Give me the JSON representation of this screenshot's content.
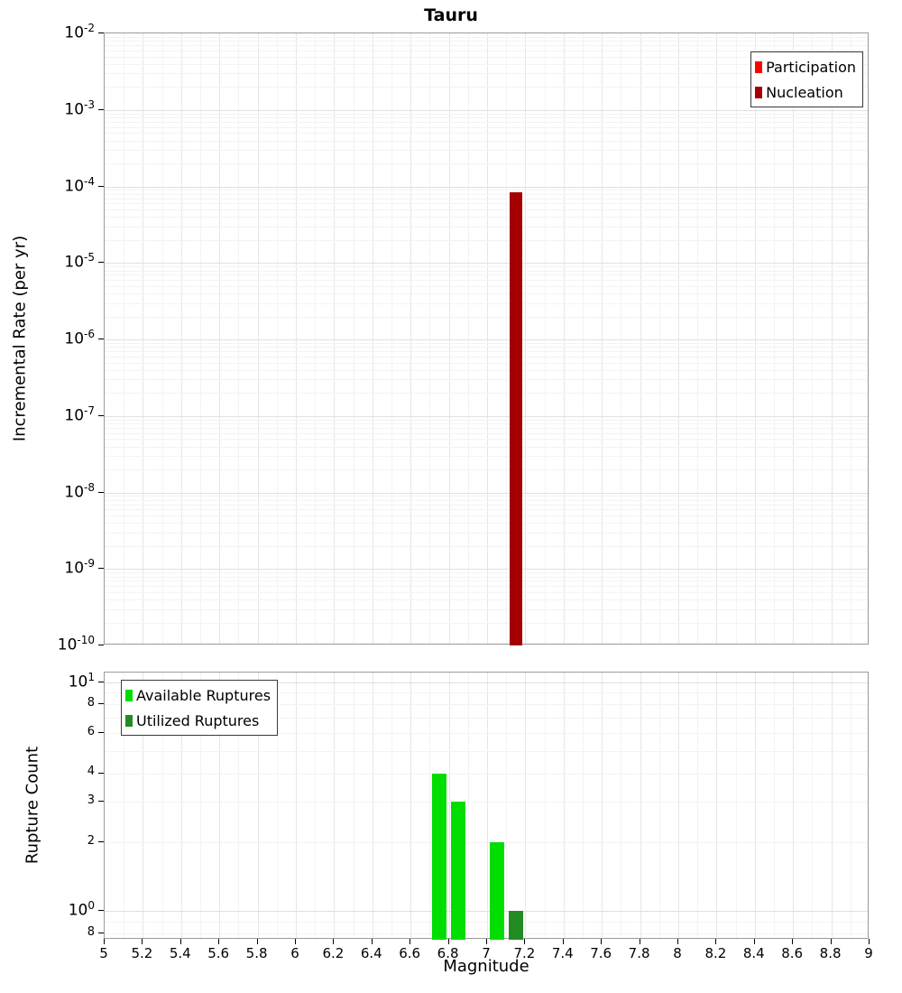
{
  "chart_data": [
    {
      "type": "bar",
      "title": "Tauru",
      "ylabel": "Incremental Rate (per yr)",
      "x_range": [
        5,
        9
      ],
      "y_scale": "log",
      "y_range": [
        1e-10,
        0.01
      ],
      "y_tick_exponents": [
        "-2",
        "-3",
        "-4",
        "-5",
        "-6",
        "-7",
        "-8",
        "-9",
        "-10"
      ],
      "grid": true,
      "legend_position": "top-right",
      "series": [
        {
          "name": "Participation",
          "color": "#ff0000",
          "bars": []
        },
        {
          "name": "Nucleation",
          "color": "#a40000",
          "bars": [
            {
              "x": 7.15,
              "y": 8.5e-05
            }
          ]
        }
      ]
    },
    {
      "type": "bar",
      "ylabel": "Rupture Count",
      "xlabel": "Magnitude",
      "x_range": [
        5,
        9
      ],
      "x_tick_step": 0.2,
      "x_tick_labels": [
        "5",
        "5.2",
        "5.4",
        "5.6",
        "5.8",
        "6",
        "6.2",
        "6.4",
        "6.6",
        "6.8",
        "7",
        "7.2",
        "7.4",
        "7.6",
        "7.8",
        "8",
        "8.2",
        "8.4",
        "8.6",
        "8.8",
        "9"
      ],
      "y_scale": "log",
      "y_range": [
        0.75,
        11
      ],
      "y_ticks": [
        {
          "label": "10",
          "exp": "1",
          "value": 10
        },
        {
          "label": "8",
          "value": 8
        },
        {
          "label": "6",
          "value": 6
        },
        {
          "label": "4",
          "value": 4
        },
        {
          "label": "3",
          "value": 3
        },
        {
          "label": "2",
          "value": 2
        },
        {
          "label": "10",
          "exp": "0",
          "value": 1
        },
        {
          "label": "8",
          "value": 0.8
        }
      ],
      "grid": true,
      "legend_position": "top-left",
      "series": [
        {
          "name": "Available Ruptures",
          "color": "#00dd00",
          "bars": [
            {
              "x": 6.75,
              "y": 4
            },
            {
              "x": 6.85,
              "y": 3
            },
            {
              "x": 7.05,
              "y": 2
            }
          ]
        },
        {
          "name": "Utilized Ruptures",
          "color": "#228b22",
          "bars": [
            {
              "x": 7.15,
              "y": 1
            }
          ]
        }
      ]
    }
  ]
}
